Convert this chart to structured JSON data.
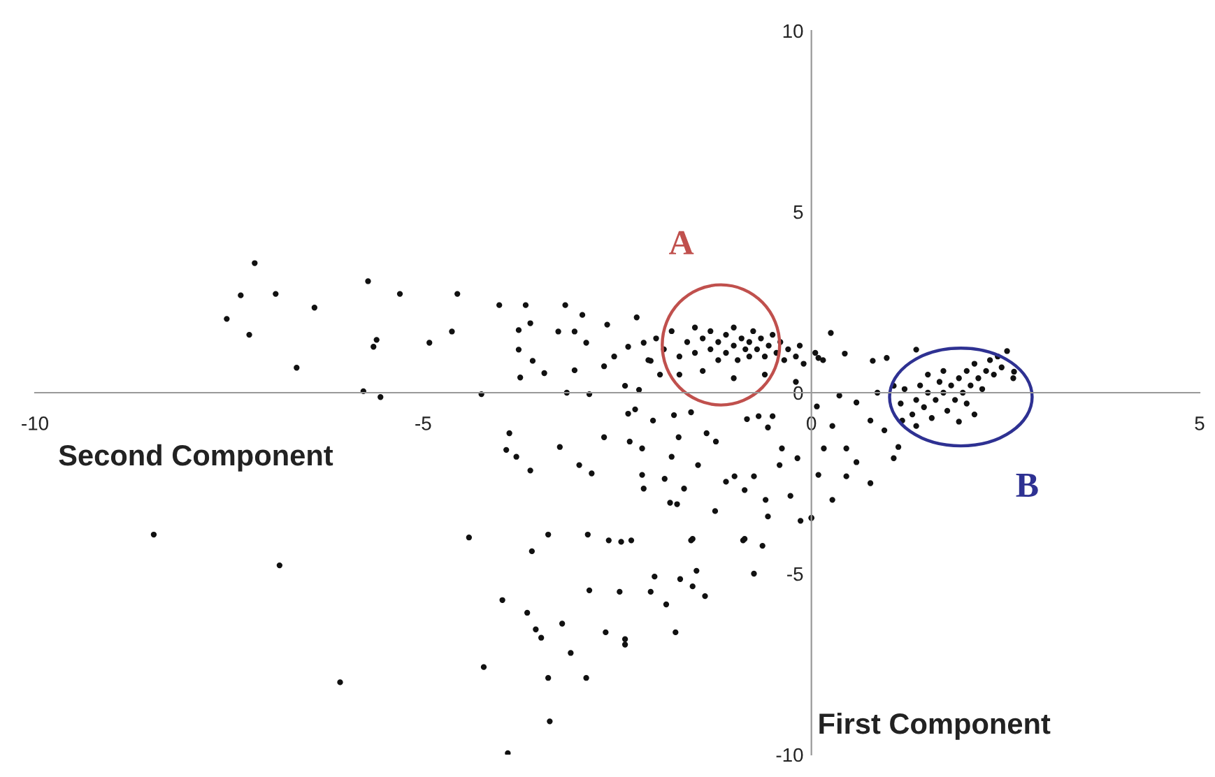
{
  "chart_data": {
    "type": "scatter",
    "xlabel": "First Component",
    "ylabel": "Second Component",
    "xlim": [
      -10,
      5
    ],
    "ylim": [
      -10,
      10
    ],
    "xticks": [
      -10,
      -5,
      0,
      5
    ],
    "yticks": [
      -10,
      -5,
      0,
      5,
      10
    ],
    "grid": false,
    "marker": "circle",
    "annotations": [
      "A",
      "B"
    ],
    "series": [
      {
        "color": "#111111",
        "x": [
          -7.53,
          -7.35,
          -7.17,
          -7.24,
          -6.9,
          -6.4,
          -6.63,
          -5.71,
          -5.64,
          -5.6,
          -5.3,
          -5.77,
          -5.55,
          -8.47,
          -6.85,
          -6.07,
          -4.56,
          -4.92,
          -4.63,
          -4.02,
          -3.68,
          -3.17,
          -2.95,
          -3.77,
          -3.62,
          -3.26,
          -3.05,
          -3.77,
          -3.59,
          -3.44,
          -3.75,
          -3.05,
          -2.9,
          -2.63,
          -4.25,
          -3.15,
          -2.86,
          -2.67,
          -2.54,
          -2.36,
          -2.25,
          -2.16,
          -2.4,
          -2.22,
          -2.07,
          -1.95,
          -3.89,
          -3.93,
          -3.8,
          -3.24,
          -3.62,
          -2.99,
          -2.83,
          -2.67,
          -2.34,
          -2.18,
          -2.36,
          -2.27,
          -2.04,
          -2.18,
          -2.16,
          -1.89,
          -1.8,
          -1.71,
          -1.77,
          -1.55,
          -1.82,
          -1.73,
          -1.64,
          -1.46,
          -1.35,
          -1.23,
          -1.1,
          -0.99,
          -1.24,
          -0.86,
          -0.74,
          -0.83,
          -0.68,
          -0.56,
          -0.5,
          -0.38,
          -0.41,
          -0.59,
          -0.56,
          -0.27,
          -0.18,
          -0.14,
          0,
          0.09,
          -4.41,
          -3.6,
          -3.39,
          -2.88,
          -2.61,
          -2.45,
          -2.32,
          -1.55,
          -0.88,
          -0.63,
          -2.0,
          -1.9,
          -1.8,
          -1.7,
          -1.6,
          -1.5,
          -1.5,
          -1.4,
          -1.3,
          -1.3,
          -1.2,
          -1.2,
          -1.1,
          -1.1,
          -1.0,
          -1.0,
          -0.95,
          -0.9,
          -0.85,
          -0.8,
          -0.8,
          -0.75,
          -0.7,
          -0.65,
          -0.6,
          -0.55,
          -0.5,
          -0.45,
          -0.4,
          -0.35,
          -0.3,
          -0.2,
          -0.15,
          -0.1,
          0.05,
          0.15,
          -1.4,
          -1.0,
          -0.6,
          -0.2,
          -1.7,
          -2.1,
          0.25,
          0.43,
          0.79,
          0.97,
          1.35,
          2.52,
          2.61,
          0.09,
          0.07,
          0.27,
          0.16,
          0.45,
          0.58,
          0.76,
          0.27,
          0,
          1.06,
          1.12,
          0.36,
          0.58,
          0.76,
          0.94,
          0.85,
          1.06,
          1.17,
          1.35,
          0.45,
          1.15,
          1.2,
          1.3,
          1.35,
          1.4,
          1.45,
          1.5,
          1.55,
          1.6,
          1.65,
          1.7,
          1.75,
          1.8,
          1.85,
          1.9,
          1.95,
          2.0,
          2.0,
          2.05,
          2.1,
          2.15,
          2.2,
          2.25,
          2.3,
          2.35,
          2.4,
          2.45,
          1.7,
          1.5,
          2.1,
          1.9,
          2.6,
          -3.98,
          -3.66,
          -3.55,
          -3.48,
          -3.21,
          -3.1,
          -3.39,
          -2.9,
          -3.37,
          -3.91,
          -4.22,
          -2.86,
          -2.47,
          -2.65,
          -2.4,
          -2.4,
          -2.07,
          -2.02,
          -1.87,
          -1.75,
          -1.69,
          -1.53,
          -1.48,
          -1.37,
          -1.53,
          -0.86,
          -0.74
        ],
        "values": [
          2.04,
          2.69,
          3.58,
          1.6,
          2.73,
          2.35,
          0.69,
          3.08,
          1.27,
          1.46,
          2.73,
          0.04,
          -0.12,
          -3.92,
          -4.77,
          -8.0,
          2.73,
          1.38,
          1.69,
          2.42,
          2.42,
          2.42,
          2.15,
          1.73,
          1.92,
          1.69,
          1.69,
          1.19,
          0.88,
          0.54,
          0.42,
          0.62,
          1.38,
          1.88,
          -0.04,
          0,
          -0.04,
          0.73,
          1.0,
          1.27,
          2.08,
          1.38,
          0.19,
          0.08,
          0.88,
          0.5,
          -1.12,
          -1.58,
          -1.77,
          -1.5,
          -2.15,
          -2.0,
          -2.23,
          -1.23,
          -1.35,
          -1.54,
          -0.58,
          -0.46,
          -0.77,
          -2.27,
          -2.65,
          -2.38,
          -1.77,
          -1.23,
          -0.62,
          -0.54,
          -3.04,
          -3.08,
          -2.65,
          -2.0,
          -1.12,
          -1.35,
          -2.46,
          -2.31,
          -3.27,
          -2.69,
          -2.31,
          -0.73,
          -0.65,
          -0.96,
          -0.65,
          -1.54,
          -2.0,
          -2.96,
          -3.42,
          -2.85,
          -1.81,
          -3.54,
          -3.46,
          -2.27,
          -4.0,
          -4.38,
          -3.92,
          -3.92,
          -4.08,
          -4.12,
          -4.08,
          -4.08,
          -4.08,
          -4.23,
          1.5,
          1.2,
          1.7,
          1.0,
          1.4,
          1.8,
          1.1,
          1.5,
          1.2,
          1.7,
          0.9,
          1.4,
          1.6,
          1.1,
          1.3,
          1.8,
          0.9,
          1.5,
          1.2,
          1.4,
          1.0,
          1.7,
          1.2,
          1.5,
          1.0,
          1.3,
          1.6,
          1.1,
          1.4,
          0.9,
          1.2,
          1.0,
          1.3,
          0.8,
          1.1,
          0.9,
          0.6,
          0.4,
          0.5,
          0.3,
          0.5,
          0.9,
          1.65,
          1.08,
          0.88,
          0.96,
          1.19,
          1.15,
          0.58,
          0.96,
          -0.38,
          -0.92,
          -1.54,
          -1.54,
          -1.92,
          -2.5,
          -2.96,
          -3.46,
          -1.81,
          -1.5,
          -0.08,
          -0.27,
          -0.77,
          -1.04,
          0,
          0.19,
          -0.77,
          -0.92,
          -2.31,
          -0.3,
          0.1,
          -0.6,
          -0.2,
          0.2,
          -0.4,
          0.0,
          -0.7,
          -0.2,
          0.3,
          0.0,
          -0.5,
          0.2,
          -0.2,
          0.4,
          0.0,
          0.6,
          -0.3,
          0.2,
          0.8,
          0.4,
          0.1,
          0.6,
          0.9,
          0.5,
          1.0,
          0.7,
          0.6,
          0.5,
          -0.6,
          -0.8,
          0.4,
          -5.73,
          -6.08,
          -6.54,
          -6.77,
          -6.38,
          -7.19,
          -7.88,
          -7.88,
          -9.08,
          -9.96,
          -7.58,
          -5.46,
          -5.5,
          -6.62,
          -6.81,
          -6.96,
          -5.5,
          -5.08,
          -5.85,
          -6.62,
          -5.15,
          -5.35,
          -4.92,
          -5.62,
          -4.04,
          -4.04,
          -5.0
        ]
      }
    ]
  }
}
